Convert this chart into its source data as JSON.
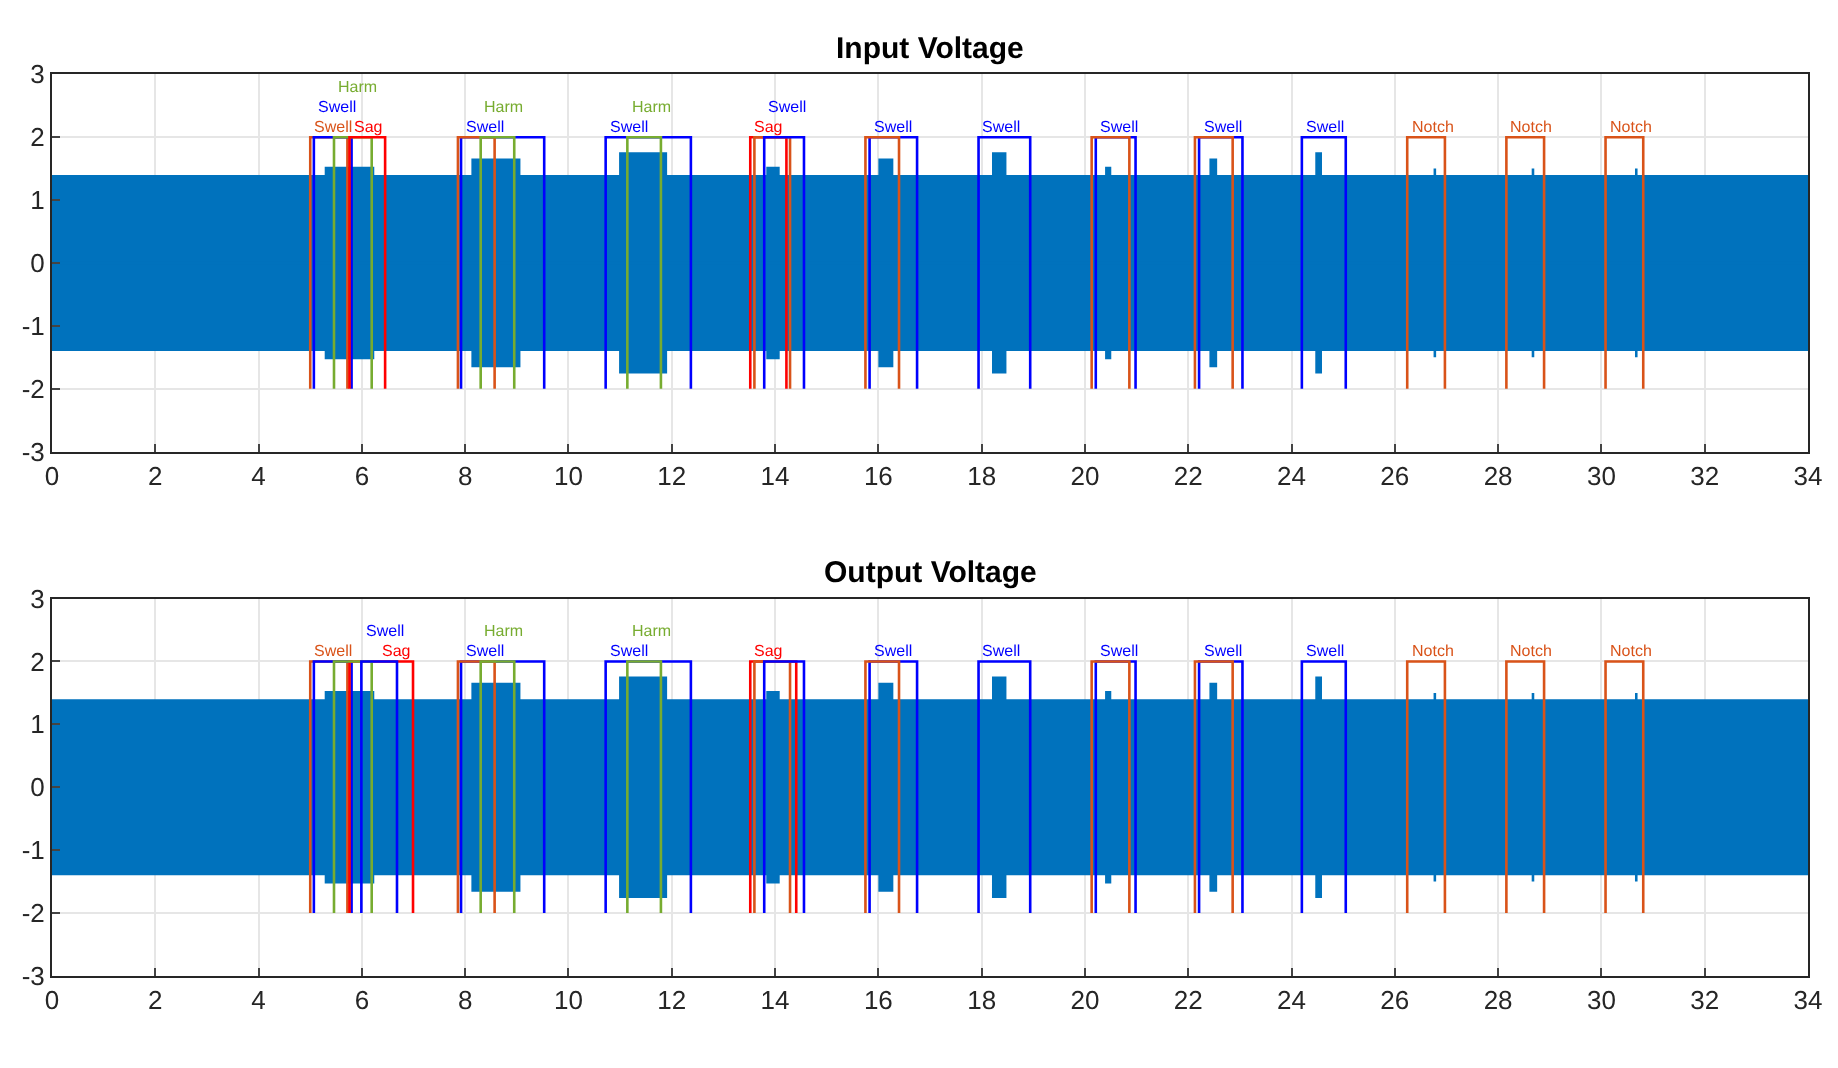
{
  "chart_data": [
    {
      "type": "line",
      "title": "Input Voltage",
      "xlim": [
        0,
        34
      ],
      "ylim": [
        -3,
        3
      ],
      "xticks": [
        0,
        2,
        4,
        6,
        8,
        10,
        12,
        14,
        16,
        18,
        20,
        22,
        24,
        26,
        28,
        30,
        32,
        34
      ],
      "yticks": [
        -3,
        -2,
        -1,
        0,
        1,
        2,
        3
      ],
      "grid": true,
      "series": [
        {
          "color": "#0072bd",
          "x": [
            0,
            5.28,
            5.28,
            6.24,
            6.24,
            8.12,
            8.12,
            9.07,
            9.07,
            10.98,
            10.98,
            11.91,
            11.91,
            13.83,
            13.83,
            14.09,
            14.09,
            16.0,
            16.0,
            16.29,
            16.29,
            18.2,
            18.2,
            18.48,
            18.48,
            20.39,
            20.39,
            20.51,
            20.51,
            22.41,
            22.41,
            22.56,
            22.56,
            24.46,
            24.46,
            24.59,
            24.59,
            26.75,
            26.75,
            26.8,
            26.8,
            28.65,
            28.65,
            28.7,
            28.7,
            30.65,
            30.65,
            30.7,
            30.7,
            34
          ],
          "values": [
            0,
            0,
            0,
            0,
            0,
            0,
            0,
            0,
            0,
            0,
            0,
            0,
            0,
            0,
            0,
            0,
            0,
            0,
            0,
            0,
            0,
            0,
            0,
            0,
            0,
            0,
            0,
            0,
            0,
            0,
            0,
            0,
            0,
            0,
            0,
            0,
            0,
            0,
            0,
            0,
            0,
            0,
            0,
            0,
            0,
            0,
            0,
            0,
            0,
            0
          ],
          "upper": [
            1.4,
            1.4,
            1.53,
            1.53,
            1.4,
            1.4,
            1.66,
            1.66,
            1.4,
            1.4,
            1.76,
            1.76,
            1.4,
            1.4,
            1.53,
            1.53,
            1.4,
            1.4,
            1.66,
            1.66,
            1.4,
            1.4,
            1.76,
            1.76,
            1.4,
            1.4,
            1.53,
            1.53,
            1.4,
            1.4,
            1.66,
            1.66,
            1.4,
            1.4,
            1.76,
            1.76,
            1.4,
            1.4,
            1.5,
            1.5,
            1.4,
            1.4,
            1.5,
            1.5,
            1.4,
            1.4,
            1.5,
            1.5,
            1.4,
            1.4
          ],
          "lower": [
            -1.4,
            -1.4,
            -1.53,
            -1.53,
            -1.4,
            -1.4,
            -1.66,
            -1.66,
            -1.4,
            -1.4,
            -1.76,
            -1.76,
            -1.4,
            -1.4,
            -1.53,
            -1.53,
            -1.4,
            -1.4,
            -1.66,
            -1.66,
            -1.4,
            -1.4,
            -1.76,
            -1.76,
            -1.4,
            -1.4,
            -1.53,
            -1.53,
            -1.4,
            -1.4,
            -1.66,
            -1.66,
            -1.4,
            -1.4,
            -1.76,
            -1.76,
            -1.4,
            -1.4,
            -1.5,
            -1.5,
            -1.4,
            -1.4,
            -1.5,
            -1.5,
            -1.4,
            -1.4,
            -1.5,
            -1.5,
            -1.4,
            -1.4
          ]
        },
        {
          "name": "Swell",
          "color": "#d95319",
          "x": [
            5.0,
            5.0,
            5.72,
            5.72
          ],
          "values": [
            -2,
            2,
            2,
            -2
          ]
        },
        {
          "name": "Swell",
          "color": "#0000ff",
          "x": [
            5.07,
            5.07,
            5.8,
            5.8
          ],
          "values": [
            -2,
            2,
            2,
            -2
          ]
        },
        {
          "name": "Harm",
          "color": "#77ac30",
          "x": [
            5.46,
            5.46,
            6.19,
            6.19
          ],
          "values": [
            -2,
            2,
            2,
            -2
          ]
        },
        {
          "name": "Sag",
          "color": "#ff0000",
          "x": [
            5.76,
            5.76,
            6.45,
            6.45
          ],
          "values": [
            -2,
            2,
            2,
            -2
          ]
        },
        {
          "name": "Swell",
          "color": "#0000ff",
          "x": [
            7.92,
            7.92,
            9.53,
            9.53
          ],
          "values": [
            -2,
            2,
            2,
            -2
          ]
        },
        {
          "color": "#d95319",
          "x": [
            7.86,
            7.86,
            8.57,
            8.57
          ],
          "values": [
            -2,
            2,
            2,
            -2
          ]
        },
        {
          "name": "Harm",
          "color": "#77ac30",
          "x": [
            8.3,
            8.3,
            8.95,
            8.95
          ],
          "values": [
            -2,
            2,
            2,
            -2
          ]
        },
        {
          "name": "Swell",
          "color": "#0000ff",
          "x": [
            10.72,
            10.72,
            12.37,
            12.37
          ],
          "values": [
            -2,
            2,
            2,
            -2
          ]
        },
        {
          "name": "Harm",
          "color": "#77ac30",
          "x": [
            11.14,
            11.14,
            11.79,
            11.79
          ],
          "values": [
            -2,
            2,
            2,
            -2
          ]
        },
        {
          "name": "Sag",
          "color": "#ff0000",
          "x": [
            13.52,
            13.52,
            14.22,
            14.22
          ],
          "values": [
            -2,
            2,
            2,
            -2
          ]
        },
        {
          "color": "#d95319",
          "x": [
            13.6,
            13.6,
            14.29,
            14.29
          ],
          "values": [
            -2,
            2,
            2,
            -2
          ]
        },
        {
          "name": "Swell",
          "color": "#0000ff",
          "x": [
            13.79,
            13.79,
            14.56,
            14.56
          ],
          "values": [
            -2,
            2,
            2,
            -2
          ]
        },
        {
          "name": "Swell",
          "color": "#0000ff",
          "x": [
            15.83,
            15.83,
            16.75,
            16.75
          ],
          "values": [
            -2,
            2,
            2,
            -2
          ]
        },
        {
          "color": "#d95319",
          "x": [
            15.75,
            15.75,
            16.4,
            16.4
          ],
          "values": [
            -2,
            2,
            2,
            -2
          ]
        },
        {
          "name": "Swell",
          "color": "#0000ff",
          "x": [
            17.94,
            17.94,
            18.94,
            18.94
          ],
          "values": [
            -2,
            2,
            2,
            -2
          ]
        },
        {
          "name": "Swell",
          "color": "#0000ff",
          "x": [
            20.21,
            20.21,
            20.98,
            20.98
          ],
          "values": [
            -2,
            2,
            2,
            -2
          ]
        },
        {
          "color": "#d95319",
          "x": [
            20.13,
            20.13,
            20.86,
            20.86
          ],
          "values": [
            -2,
            2,
            2,
            -2
          ]
        },
        {
          "name": "Swell",
          "color": "#0000ff",
          "x": [
            22.21,
            22.21,
            23.05,
            23.05
          ],
          "values": [
            -2,
            2,
            2,
            -2
          ]
        },
        {
          "color": "#d95319",
          "x": [
            22.13,
            22.13,
            22.86,
            22.86
          ],
          "values": [
            -2,
            2,
            2,
            -2
          ]
        },
        {
          "name": "Swell",
          "color": "#0000ff",
          "x": [
            24.2,
            24.2,
            25.05,
            25.05
          ],
          "values": [
            -2,
            2,
            2,
            -2
          ]
        },
        {
          "name": "Notch",
          "color": "#d95319",
          "x": [
            26.24,
            26.24,
            26.97,
            26.97
          ],
          "values": [
            -2,
            2,
            2,
            -2
          ]
        },
        {
          "name": "Notch",
          "color": "#d95319",
          "x": [
            28.16,
            28.16,
            28.89,
            28.89
          ],
          "values": [
            -2,
            2,
            2,
            -2
          ]
        },
        {
          "name": "Notch",
          "color": "#d95319",
          "x": [
            30.08,
            30.08,
            30.81,
            30.81
          ],
          "values": [
            -2,
            2,
            2,
            -2
          ]
        }
      ]
    },
    {
      "type": "line",
      "title": "Output Voltage",
      "xlim": [
        0,
        34
      ],
      "ylim": [
        -3,
        3
      ],
      "xticks": [
        0,
        2,
        4,
        6,
        8,
        10,
        12,
        14,
        16,
        18,
        20,
        22,
        24,
        26,
        28,
        30,
        32,
        34
      ],
      "yticks": [
        -3,
        -2,
        -1,
        0,
        1,
        2,
        3
      ],
      "grid": true,
      "series": [
        {
          "color": "#0072bd",
          "x": [
            0,
            5.28,
            5.28,
            6.24,
            6.24,
            8.12,
            8.12,
            9.07,
            9.07,
            10.98,
            10.98,
            11.91,
            11.91,
            13.83,
            13.83,
            14.09,
            14.09,
            16.0,
            16.0,
            16.29,
            16.29,
            18.2,
            18.2,
            18.48,
            18.48,
            20.39,
            20.39,
            20.51,
            20.51,
            22.41,
            22.41,
            22.56,
            22.56,
            24.46,
            24.46,
            24.59,
            24.59,
            26.75,
            26.75,
            26.8,
            26.8,
            28.65,
            28.65,
            28.7,
            28.7,
            30.65,
            30.65,
            30.7,
            30.7,
            34
          ],
          "values": [
            0,
            0,
            0,
            0,
            0,
            0,
            0,
            0,
            0,
            0,
            0,
            0,
            0,
            0,
            0,
            0,
            0,
            0,
            0,
            0,
            0,
            0,
            0,
            0,
            0,
            0,
            0,
            0,
            0,
            0,
            0,
            0,
            0,
            0,
            0,
            0,
            0,
            0,
            0,
            0,
            0,
            0,
            0,
            0,
            0,
            0,
            0,
            0,
            0,
            0
          ],
          "upper": [
            1.4,
            1.4,
            1.53,
            1.53,
            1.4,
            1.4,
            1.66,
            1.66,
            1.4,
            1.4,
            1.76,
            1.76,
            1.4,
            1.4,
            1.53,
            1.53,
            1.4,
            1.4,
            1.66,
            1.66,
            1.4,
            1.4,
            1.76,
            1.76,
            1.4,
            1.4,
            1.53,
            1.53,
            1.4,
            1.4,
            1.66,
            1.66,
            1.4,
            1.4,
            1.76,
            1.76,
            1.4,
            1.4,
            1.5,
            1.5,
            1.4,
            1.4,
            1.5,
            1.5,
            1.4,
            1.4,
            1.5,
            1.5,
            1.4,
            1.4
          ],
          "lower": [
            -1.4,
            -1.4,
            -1.53,
            -1.53,
            -1.4,
            -1.4,
            -1.66,
            -1.66,
            -1.4,
            -1.4,
            -1.76,
            -1.76,
            -1.4,
            -1.4,
            -1.53,
            -1.53,
            -1.4,
            -1.4,
            -1.66,
            -1.66,
            -1.4,
            -1.4,
            -1.76,
            -1.76,
            -1.4,
            -1.4,
            -1.53,
            -1.53,
            -1.4,
            -1.4,
            -1.66,
            -1.66,
            -1.4,
            -1.4,
            -1.76,
            -1.76,
            -1.4,
            -1.4,
            -1.5,
            -1.5,
            -1.4,
            -1.4,
            -1.5,
            -1.5,
            -1.4,
            -1.4,
            -1.5,
            -1.5,
            -1.4,
            -1.4
          ]
        },
        {
          "name": "Swell",
          "color": "#d95319",
          "x": [
            5.0,
            5.0,
            5.72,
            5.72
          ],
          "values": [
            -2,
            2,
            2,
            -2
          ]
        },
        {
          "color": "#0000ff",
          "x": [
            5.07,
            5.07,
            5.8,
            5.8
          ],
          "values": [
            -2,
            2,
            2,
            -2
          ]
        },
        {
          "name": "Sag",
          "color": "#ff0000",
          "x": [
            5.76,
            5.76,
            6.99,
            6.99
          ],
          "values": [
            -2,
            2,
            2,
            -2
          ]
        },
        {
          "color": "#77ac30",
          "x": [
            5.46,
            5.46,
            6.19,
            6.19
          ],
          "values": [
            -2,
            2,
            2,
            -2
          ]
        },
        {
          "name": "Swell",
          "color": "#0000ff",
          "x": [
            5.99,
            5.99,
            6.68,
            6.68
          ],
          "values": [
            -2,
            2,
            2,
            -2
          ]
        },
        {
          "name": "Swell",
          "color": "#0000ff",
          "x": [
            7.92,
            7.92,
            9.53,
            9.53
          ],
          "values": [
            -2,
            2,
            2,
            -2
          ]
        },
        {
          "color": "#d95319",
          "x": [
            7.86,
            7.86,
            8.57,
            8.57
          ],
          "values": [
            -2,
            2,
            2,
            -2
          ]
        },
        {
          "name": "Harm",
          "color": "#77ac30",
          "x": [
            8.3,
            8.3,
            8.95,
            8.95
          ],
          "values": [
            -2,
            2,
            2,
            -2
          ]
        },
        {
          "name": "Swell",
          "color": "#0000ff",
          "x": [
            10.72,
            10.72,
            12.37,
            12.37
          ],
          "values": [
            -2,
            2,
            2,
            -2
          ]
        },
        {
          "name": "Harm",
          "color": "#77ac30",
          "x": [
            11.14,
            11.14,
            11.79,
            11.79
          ],
          "values": [
            -2,
            2,
            2,
            -2
          ]
        },
        {
          "name": "Sag",
          "color": "#ff0000",
          "x": [
            13.52,
            13.52,
            14.41,
            14.41
          ],
          "values": [
            -2,
            2,
            2,
            -2
          ]
        },
        {
          "color": "#d95319",
          "x": [
            13.6,
            13.6,
            14.29,
            14.29
          ],
          "values": [
            -2,
            2,
            2,
            -2
          ]
        },
        {
          "color": "#0000ff",
          "x": [
            13.79,
            13.79,
            14.56,
            14.56
          ],
          "values": [
            -2,
            2,
            2,
            -2
          ]
        },
        {
          "name": "Swell",
          "color": "#0000ff",
          "x": [
            15.83,
            15.83,
            16.75,
            16.75
          ],
          "values": [
            -2,
            2,
            2,
            -2
          ]
        },
        {
          "color": "#d95319",
          "x": [
            15.75,
            15.75,
            16.4,
            16.4
          ],
          "values": [
            -2,
            2,
            2,
            -2
          ]
        },
        {
          "name": "Swell",
          "color": "#0000ff",
          "x": [
            17.94,
            17.94,
            18.94,
            18.94
          ],
          "values": [
            -2,
            2,
            2,
            -2
          ]
        },
        {
          "name": "Swell",
          "color": "#0000ff",
          "x": [
            20.21,
            20.21,
            20.98,
            20.98
          ],
          "values": [
            -2,
            2,
            2,
            -2
          ]
        },
        {
          "color": "#d95319",
          "x": [
            20.13,
            20.13,
            20.86,
            20.86
          ],
          "values": [
            -2,
            2,
            2,
            -2
          ]
        },
        {
          "name": "Swell",
          "color": "#0000ff",
          "x": [
            22.21,
            22.21,
            23.05,
            23.05
          ],
          "values": [
            -2,
            2,
            2,
            -2
          ]
        },
        {
          "color": "#d95319",
          "x": [
            22.13,
            22.13,
            22.86,
            22.86
          ],
          "values": [
            -2,
            2,
            2,
            -2
          ]
        },
        {
          "name": "Swell",
          "color": "#0000ff",
          "x": [
            24.2,
            24.2,
            25.05,
            25.05
          ],
          "values": [
            -2,
            2,
            2,
            -2
          ]
        },
        {
          "name": "Notch",
          "color": "#d95319",
          "x": [
            26.24,
            26.24,
            26.97,
            26.97
          ],
          "values": [
            -2,
            2,
            2,
            -2
          ]
        },
        {
          "name": "Notch",
          "color": "#d95319",
          "x": [
            28.16,
            28.16,
            28.89,
            28.89
          ],
          "values": [
            -2,
            2,
            2,
            -2
          ]
        },
        {
          "name": "Notch",
          "color": "#d95319",
          "x": [
            30.08,
            30.08,
            30.81,
            30.81
          ],
          "values": [
            -2,
            2,
            2,
            -2
          ]
        }
      ]
    }
  ]
}
